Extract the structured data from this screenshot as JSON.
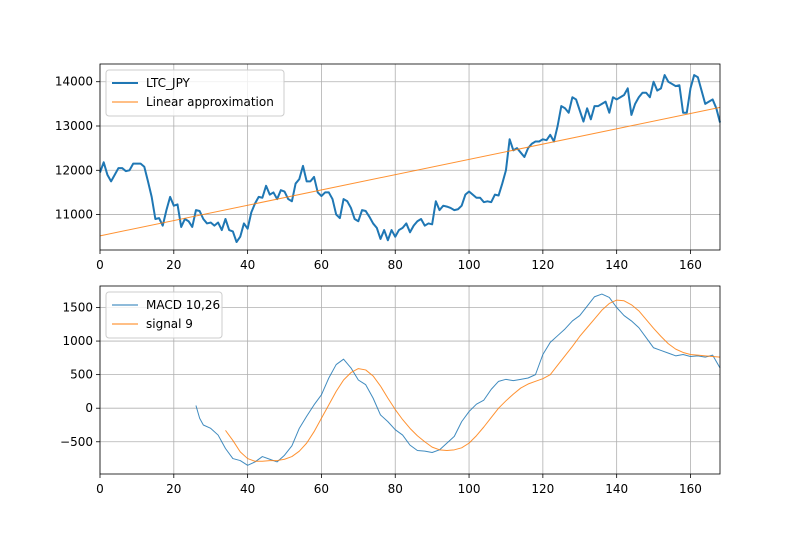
{
  "chart_data": [
    {
      "type": "line",
      "xlim": [
        0,
        168
      ],
      "ylim": [
        10200,
        14400
      ],
      "xticks": [
        0,
        20,
        40,
        60,
        80,
        100,
        120,
        140,
        160
      ],
      "yticks": [
        11000,
        12000,
        13000,
        14000
      ],
      "grid": true,
      "legend_placement": "top-left",
      "series": [
        {
          "name": "LTC_JPY",
          "color": "#1f77b4",
          "x": [
            0,
            1,
            2,
            3,
            4,
            5,
            6,
            7,
            8,
            9,
            10,
            11,
            12,
            13,
            14,
            15,
            16,
            17,
            18,
            19,
            20,
            21,
            22,
            23,
            24,
            25,
            26,
            27,
            28,
            29,
            30,
            31,
            32,
            33,
            34,
            35,
            36,
            37,
            38,
            39,
            40,
            41,
            42,
            43,
            44,
            45,
            46,
            47,
            48,
            49,
            50,
            51,
            52,
            53,
            54,
            55,
            56,
            57,
            58,
            59,
            60,
            61,
            62,
            63,
            64,
            65,
            66,
            67,
            68,
            69,
            70,
            71,
            72,
            73,
            74,
            75,
            76,
            77,
            78,
            79,
            80,
            81,
            82,
            83,
            84,
            85,
            86,
            87,
            88,
            89,
            90,
            91,
            92,
            93,
            94,
            95,
            96,
            97,
            98,
            99,
            100,
            101,
            102,
            103,
            104,
            105,
            106,
            107,
            108,
            109,
            110,
            111,
            112,
            113,
            114,
            115,
            116,
            117,
            118,
            119,
            120,
            121,
            122,
            123,
            124,
            125,
            126,
            127,
            128,
            129,
            130,
            131,
            132,
            133,
            134,
            135,
            136,
            137,
            138,
            139,
            140,
            141,
            142,
            143,
            144,
            145,
            146,
            147,
            148,
            149,
            150,
            151,
            152,
            153,
            154,
            155,
            156,
            157,
            158,
            159,
            160,
            161,
            162,
            163,
            164,
            165,
            166,
            167,
            168
          ],
          "values": [
            11950,
            12180,
            11900,
            11750,
            11900,
            12050,
            12050,
            11980,
            12000,
            12150,
            12150,
            12150,
            12080,
            11750,
            11400,
            10900,
            10920,
            10750,
            11100,
            11400,
            11200,
            11230,
            10720,
            10900,
            10850,
            10720,
            11100,
            11080,
            10900,
            10800,
            10820,
            10750,
            10820,
            10650,
            10900,
            10650,
            10620,
            10380,
            10500,
            10800,
            10680,
            11050,
            11250,
            11400,
            11380,
            11650,
            11450,
            11500,
            11350,
            11550,
            11520,
            11350,
            11300,
            11700,
            11800,
            12100,
            11750,
            11750,
            11850,
            11500,
            11420,
            11500,
            11500,
            11350,
            11000,
            10920,
            11350,
            11300,
            11150,
            10900,
            10850,
            11100,
            11080,
            10950,
            10800,
            10700,
            10450,
            10650,
            10420,
            10650,
            10500,
            10650,
            10700,
            10800,
            10600,
            10750,
            10850,
            10900,
            10750,
            10800,
            10780,
            11300,
            11100,
            11200,
            11180,
            11150,
            11100,
            11120,
            11200,
            11450,
            11520,
            11450,
            11380,
            11380,
            11280,
            11300,
            11280,
            11450,
            11430,
            11700,
            12000,
            12700,
            12450,
            12500,
            12400,
            12300,
            12500,
            12600,
            12650,
            12650,
            12700,
            12680,
            12800,
            12650,
            13000,
            13450,
            13400,
            13300,
            13650,
            13600,
            13350,
            13100,
            13400,
            13150,
            13450,
            13450,
            13500,
            13550,
            13300,
            13650,
            13600,
            13650,
            13700,
            13850,
            13250,
            13500,
            13650,
            13750,
            13750,
            13650,
            14000,
            13800,
            13850,
            14150,
            14000,
            13950,
            13900,
            13920,
            13300,
            13300,
            13850,
            14150,
            14100,
            13800,
            13500,
            13550,
            13600,
            13400,
            13080
          ]
        },
        {
          "name": "Linear approximation",
          "color": "#ff7f0e",
          "x": [
            0,
            168
          ],
          "values": [
            10520,
            13420
          ]
        }
      ]
    },
    {
      "type": "line",
      "xlim": [
        0,
        168
      ],
      "ylim": [
        -980,
        1820
      ],
      "xticks": [
        0,
        20,
        40,
        60,
        80,
        100,
        120,
        140,
        160
      ],
      "yticks": [
        -500,
        0,
        500,
        1000,
        1500
      ],
      "grid": true,
      "legend_placement": "top-left",
      "series": [
        {
          "name": "MACD 10,26",
          "color": "#1f77b4",
          "x": [
            26,
            27,
            28,
            30,
            32,
            34,
            36,
            38,
            40,
            42,
            44,
            46,
            48,
            50,
            52,
            54,
            56,
            58,
            60,
            62,
            64,
            66,
            68,
            70,
            72,
            74,
            76,
            78,
            80,
            82,
            84,
            86,
            88,
            90,
            92,
            94,
            96,
            98,
            100,
            102,
            104,
            106,
            108,
            110,
            112,
            114,
            116,
            118,
            120,
            122,
            124,
            126,
            128,
            130,
            132,
            134,
            136,
            138,
            140,
            142,
            144,
            146,
            148,
            150,
            152,
            154,
            156,
            158,
            160,
            162,
            164,
            166,
            168
          ],
          "values": [
            40,
            -150,
            -250,
            -300,
            -400,
            -600,
            -750,
            -780,
            -850,
            -800,
            -720,
            -760,
            -800,
            -700,
            -560,
            -300,
            -120,
            50,
            200,
            450,
            650,
            730,
            600,
            420,
            350,
            150,
            -100,
            -200,
            -320,
            -400,
            -550,
            -630,
            -640,
            -660,
            -620,
            -520,
            -420,
            -200,
            -50,
            60,
            120,
            280,
            400,
            430,
            410,
            430,
            450,
            500,
            800,
            980,
            1080,
            1180,
            1300,
            1380,
            1520,
            1660,
            1700,
            1650,
            1500,
            1380,
            1300,
            1200,
            1050,
            900,
            860,
            820,
            780,
            800,
            770,
            780,
            760,
            790,
            600
          ]
        },
        {
          "name": "signal 9",
          "color": "#ff7f0e",
          "x": [
            34,
            36,
            38,
            40,
            42,
            44,
            46,
            48,
            50,
            52,
            54,
            56,
            58,
            60,
            62,
            64,
            66,
            68,
            70,
            72,
            74,
            76,
            78,
            80,
            82,
            84,
            86,
            88,
            90,
            92,
            94,
            96,
            98,
            100,
            102,
            104,
            106,
            108,
            110,
            112,
            114,
            116,
            118,
            120,
            122,
            124,
            126,
            128,
            130,
            132,
            134,
            136,
            138,
            140,
            142,
            144,
            146,
            148,
            150,
            152,
            154,
            156,
            158,
            160,
            162,
            164,
            166,
            168
          ],
          "values": [
            -330,
            -480,
            -650,
            -750,
            -790,
            -790,
            -780,
            -780,
            -760,
            -720,
            -640,
            -520,
            -350,
            -150,
            50,
            250,
            420,
            530,
            590,
            570,
            480,
            330,
            150,
            -20,
            -170,
            -300,
            -410,
            -500,
            -580,
            -620,
            -630,
            -620,
            -590,
            -520,
            -410,
            -280,
            -140,
            0,
            110,
            210,
            300,
            360,
            400,
            440,
            500,
            640,
            780,
            920,
            1070,
            1200,
            1330,
            1460,
            1560,
            1610,
            1600,
            1540,
            1450,
            1320,
            1190,
            1070,
            960,
            880,
            830,
            800,
            790,
            780,
            770,
            760
          ]
        }
      ]
    }
  ]
}
